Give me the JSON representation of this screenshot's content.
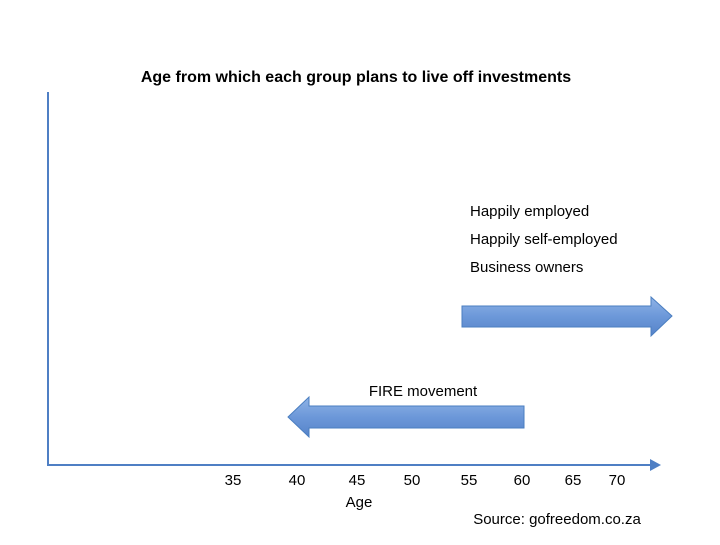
{
  "title": "Age from which each group plans to live off investments",
  "axis": {
    "ticks": [
      35,
      40,
      45,
      50,
      55,
      60,
      65,
      70
    ],
    "label": "Age"
  },
  "groups": [
    "Happily employed",
    "Happily self-employed",
    "Business owners"
  ],
  "fire_label": "FIRE movement",
  "source": "Source: gofreedom.co.za"
}
